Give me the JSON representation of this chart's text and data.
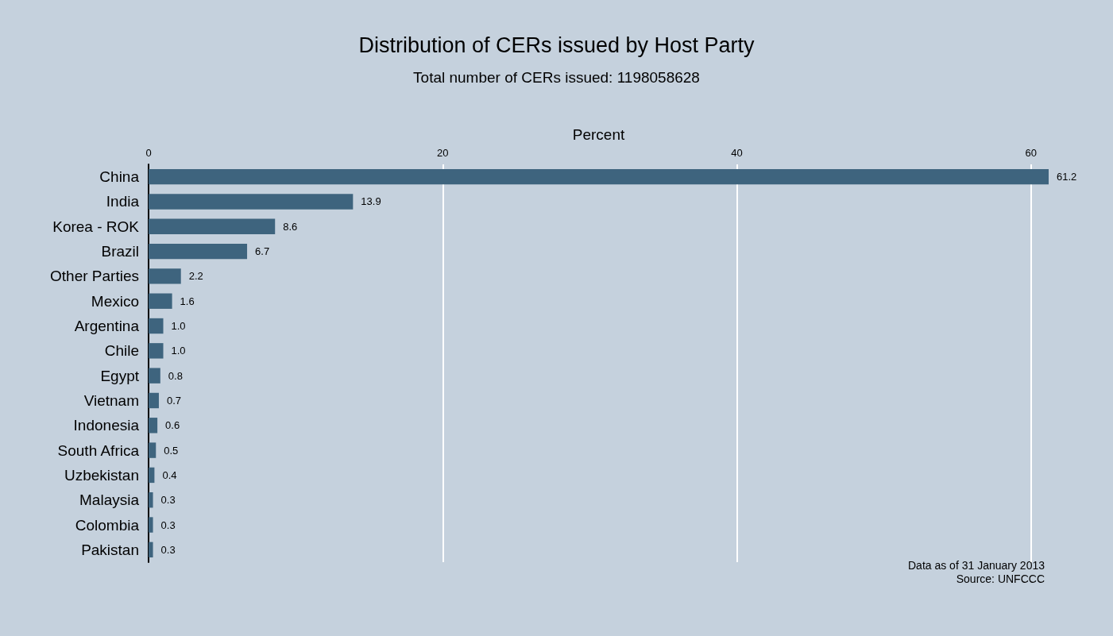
{
  "chart_data": {
    "type": "bar",
    "orientation": "horizontal",
    "title": "Distribution of CERs issued by Host Party",
    "subtitle": "Total number of CERs issued: 1198058628",
    "xlabel": "Percent",
    "categories": [
      "China",
      "India",
      "Korea - ROK",
      "Brazil",
      "Other Parties",
      "Mexico",
      "Argentina",
      "Chile",
      "Egypt",
      "Vietnam",
      "Indonesia",
      "South Africa",
      "Uzbekistan",
      "Malaysia",
      "Colombia",
      "Pakistan"
    ],
    "values": [
      61.2,
      13.9,
      8.6,
      6.7,
      2.2,
      1.6,
      1.0,
      1.0,
      0.8,
      0.7,
      0.6,
      0.5,
      0.4,
      0.3,
      0.3,
      0.3
    ],
    "value_labels": [
      "61.2",
      "13.9",
      "8.6",
      "6.7",
      "2.2",
      "1.6",
      "1.0",
      "1.0",
      "0.8",
      "0.7",
      "0.6",
      "0.5",
      "0.4",
      "0.3",
      "0.3",
      "0.3"
    ],
    "color": "#3e647e",
    "xlim": [
      0,
      61.2
    ],
    "xticks": [
      0,
      20,
      40,
      60
    ],
    "grid": "x",
    "annotations": [
      "Data as of 31 January 2013",
      "Source: UNFCCC"
    ]
  }
}
